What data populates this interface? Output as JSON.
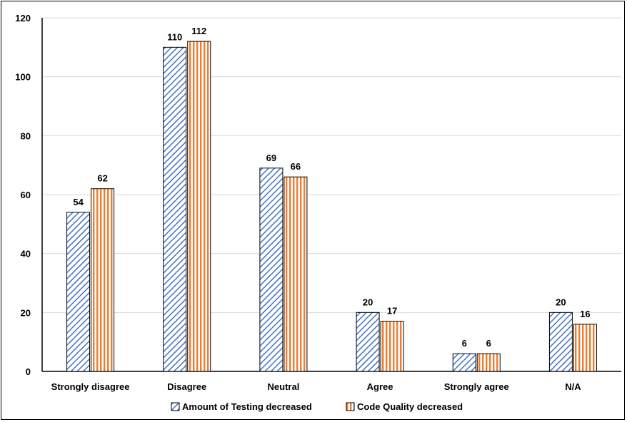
{
  "chart_data": {
    "type": "bar",
    "categories": [
      "Strongly disagree",
      "Disagree",
      "Neutral",
      "Agree",
      "Strongly agree",
      "N/A"
    ],
    "series": [
      {
        "name": "Amount of Testing decreased",
        "values": [
          54,
          110,
          69,
          20,
          6,
          20
        ],
        "color": "#4472C4",
        "pattern": "diagonal-stripes"
      },
      {
        "name": "Code Quality decreased",
        "values": [
          62,
          112,
          66,
          17,
          6,
          16
        ],
        "color": "#ED7D31",
        "pattern": "vertical-stripes"
      }
    ],
    "ylim": [
      0,
      120
    ],
    "yticks": [
      0,
      20,
      40,
      60,
      80,
      100,
      120
    ],
    "grid": true,
    "legend_position": "bottom",
    "title": "",
    "xlabel": "",
    "ylabel": ""
  }
}
